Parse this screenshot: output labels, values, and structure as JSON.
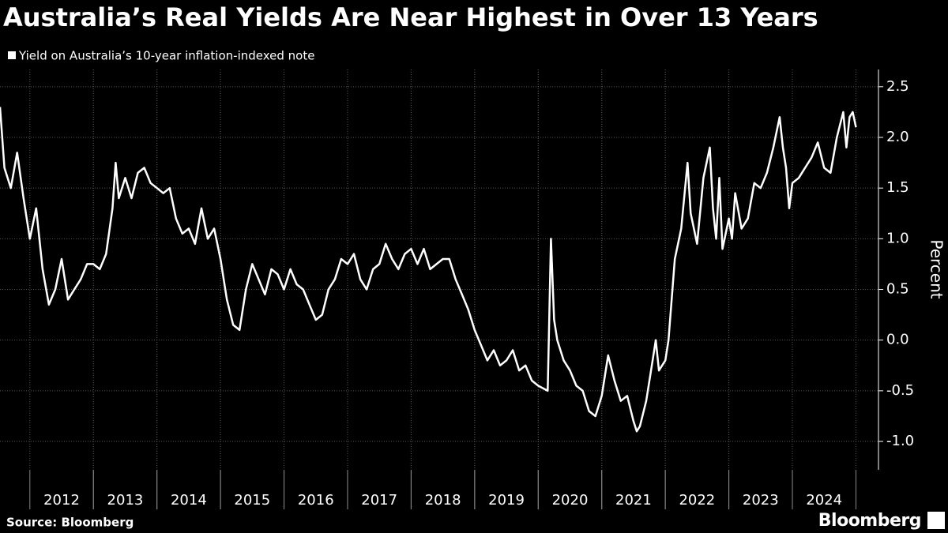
{
  "chart_data": {
    "type": "line",
    "title": "Australia’s Real Yields Are Near Highest in Over 13 Years",
    "y_label": "Percent",
    "source": "Source: Bloomberg",
    "brand": "Bloomberg",
    "x": [
      2011.53,
      2011.6,
      2011.7,
      2011.8,
      2011.9,
      2012.0,
      2012.1,
      2012.2,
      2012.3,
      2012.4,
      2012.5,
      2012.6,
      2012.7,
      2012.8,
      2012.9,
      2013.0,
      2013.1,
      2013.2,
      2013.3,
      2013.35,
      2013.4,
      2013.5,
      2013.6,
      2013.7,
      2013.8,
      2013.9,
      2014.0,
      2014.1,
      2014.2,
      2014.3,
      2014.4,
      2014.5,
      2014.6,
      2014.7,
      2014.8,
      2014.9,
      2015.0,
      2015.1,
      2015.2,
      2015.3,
      2015.4,
      2015.5,
      2015.6,
      2015.7,
      2015.8,
      2015.9,
      2016.0,
      2016.1,
      2016.2,
      2016.3,
      2016.4,
      2016.5,
      2016.6,
      2016.7,
      2016.8,
      2016.9,
      2017.0,
      2017.1,
      2017.2,
      2017.3,
      2017.4,
      2017.5,
      2017.6,
      2017.7,
      2017.8,
      2017.9,
      2018.0,
      2018.1,
      2018.2,
      2018.3,
      2018.4,
      2018.5,
      2018.6,
      2018.7,
      2018.8,
      2018.9,
      2019.0,
      2019.1,
      2019.2,
      2019.3,
      2019.4,
      2019.5,
      2019.6,
      2019.7,
      2019.8,
      2019.9,
      2020.0,
      2020.15,
      2020.2,
      2020.25,
      2020.3,
      2020.4,
      2020.5,
      2020.6,
      2020.7,
      2020.8,
      2020.9,
      2021.0,
      2021.1,
      2021.2,
      2021.3,
      2021.4,
      2021.5,
      2021.55,
      2021.6,
      2021.7,
      2021.8,
      2021.85,
      2021.9,
      2022.0,
      2022.05,
      2022.1,
      2022.15,
      2022.25,
      2022.35,
      2022.4,
      2022.5,
      2022.6,
      2022.7,
      2022.75,
      2022.8,
      2022.85,
      2022.9,
      2023.0,
      2023.05,
      2023.1,
      2023.2,
      2023.3,
      2023.4,
      2023.5,
      2023.6,
      2023.7,
      2023.8,
      2023.85,
      2023.9,
      2023.95,
      2024.0,
      2024.1,
      2024.2,
      2024.3,
      2024.4,
      2024.5,
      2024.6,
      2024.7,
      2024.8,
      2024.85,
      2024.9,
      2024.95,
      2025.0
    ],
    "series": [
      {
        "name": "Yield on Australia’s 10-year inflation-indexed note",
        "color": "#ffffff",
        "values": [
          2.3,
          1.7,
          1.5,
          1.85,
          1.4,
          1.0,
          1.3,
          0.7,
          0.35,
          0.5,
          0.8,
          0.4,
          0.5,
          0.6,
          0.75,
          0.75,
          0.7,
          0.85,
          1.3,
          1.75,
          1.4,
          1.6,
          1.4,
          1.65,
          1.7,
          1.55,
          1.5,
          1.45,
          1.5,
          1.2,
          1.05,
          1.1,
          0.95,
          1.3,
          1.0,
          1.1,
          0.8,
          0.4,
          0.15,
          0.1,
          0.5,
          0.75,
          0.6,
          0.45,
          0.7,
          0.65,
          0.5,
          0.7,
          0.55,
          0.5,
          0.35,
          0.2,
          0.25,
          0.5,
          0.6,
          0.8,
          0.75,
          0.85,
          0.6,
          0.5,
          0.7,
          0.75,
          0.95,
          0.8,
          0.7,
          0.85,
          0.9,
          0.75,
          0.9,
          0.7,
          0.75,
          0.8,
          0.8,
          0.6,
          0.45,
          0.3,
          0.1,
          -0.05,
          -0.2,
          -0.1,
          -0.25,
          -0.2,
          -0.1,
          -0.3,
          -0.25,
          -0.4,
          -0.45,
          -0.5,
          1.0,
          0.2,
          0.0,
          -0.2,
          -0.3,
          -0.45,
          -0.5,
          -0.7,
          -0.75,
          -0.55,
          -0.15,
          -0.4,
          -0.6,
          -0.55,
          -0.8,
          -0.9,
          -0.85,
          -0.6,
          -0.2,
          0.0,
          -0.3,
          -0.2,
          0.0,
          0.4,
          0.8,
          1.1,
          1.75,
          1.25,
          0.95,
          1.6,
          1.9,
          1.3,
          1.0,
          1.6,
          0.9,
          1.2,
          1.0,
          1.45,
          1.1,
          1.2,
          1.55,
          1.5,
          1.65,
          1.9,
          2.2,
          1.9,
          1.7,
          1.3,
          1.55,
          1.6,
          1.7,
          1.8,
          1.95,
          1.7,
          1.65,
          2.0,
          2.25,
          1.9,
          2.2,
          2.25,
          2.1
        ]
      }
    ],
    "xlim": [
      2011.53,
      2025.33
    ],
    "xticks": [
      {
        "value": 2012.5,
        "label": "2012"
      },
      {
        "value": 2013.5,
        "label": "2013"
      },
      {
        "value": 2014.5,
        "label": "2014"
      },
      {
        "value": 2015.5,
        "label": "2015"
      },
      {
        "value": 2016.5,
        "label": "2016"
      },
      {
        "value": 2017.5,
        "label": "2017"
      },
      {
        "value": 2018.5,
        "label": "2018"
      },
      {
        "value": 2019.5,
        "label": "2019"
      },
      {
        "value": 2020.5,
        "label": "2020"
      },
      {
        "value": 2021.5,
        "label": "2021"
      },
      {
        "value": 2022.5,
        "label": "2022"
      },
      {
        "value": 2023.5,
        "label": "2023"
      },
      {
        "value": 2024.5,
        "label": "2024"
      }
    ],
    "ylim": [
      -1.28,
      2.67
    ],
    "yticks": [
      {
        "value": -1,
        "label": "-1.0"
      },
      -0.5,
      {
        "value": 0,
        "label": "0.0"
      },
      0.5,
      {
        "value": 1,
        "label": "1.0"
      },
      1.5,
      {
        "value": 2,
        "label": "2.0"
      },
      2.5
    ],
    "grid": true
  }
}
